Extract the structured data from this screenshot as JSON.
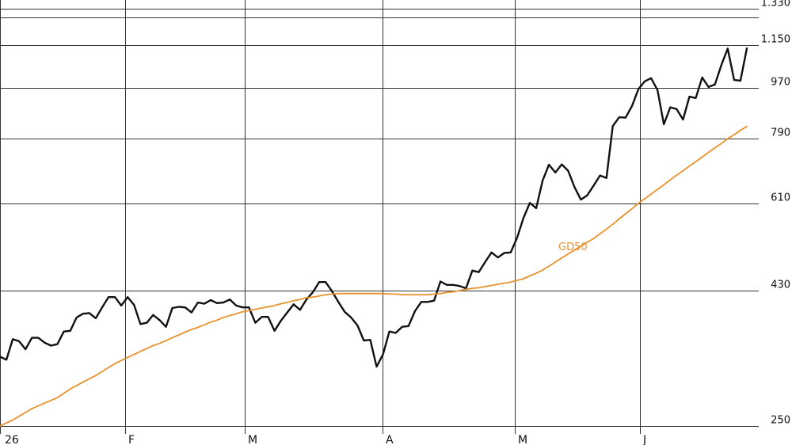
{
  "chart_data": {
    "type": "line",
    "y_scale": "log",
    "ylim": [
      250,
      1330
    ],
    "y_ticks": [
      {
        "value": 250,
        "label": "250"
      },
      {
        "value": 430,
        "label": "430"
      },
      {
        "value": 610,
        "label": "610"
      },
      {
        "value": 790,
        "label": "790"
      },
      {
        "value": 970,
        "label": "970"
      },
      {
        "value": 1150,
        "label": "1.150"
      },
      {
        "value": 1330,
        "label": "1.330"
      }
    ],
    "x_ticks": [
      "26",
      "F",
      "M",
      "A",
      "M",
      "J"
    ],
    "grid": true,
    "colors": {
      "price": "#111111",
      "ma": "#E8922E",
      "grid": "#333333"
    },
    "series": [
      {
        "name": "",
        "values": [
          330,
          326,
          354,
          351,
          340,
          356,
          356,
          349,
          345,
          347,
          365,
          366,
          386,
          392,
          393,
          385,
          402,
          419,
          419,
          405,
          419,
          406,
          376,
          378,
          390,
          382,
          372,
          401,
          403,
          402,
          394,
          410,
          408,
          414,
          409,
          410,
          415,
          405,
          402,
          402,
          378,
          387,
          387,
          366,
          381,
          394,
          407,
          398,
          415,
          427,
          445,
          445,
          429,
          411,
          395,
          386,
          374,
          352,
          353,
          317,
          333,
          365,
          363,
          372,
          373,
          396,
          411,
          411,
          413,
          446,
          440,
          440,
          438,
          434,
          466,
          463,
          482,
          501,
          491,
          500,
          501,
          531,
          575,
          611,
          598,
          668,
          712,
          690,
          713,
          695,
          651,
          619,
          630,
          655,
          682,
          675,
          831,
          861,
          860,
          900,
          963,
          994,
          1007,
          960,
          837,
          896,
          890,
          853,
          935,
          930,
          1010,
          972,
          982,
          1061,
          1134,
          1000,
          997,
          1135
        ],
        "source": "daily close, read from line"
      },
      {
        "name": "GD50",
        "values": [
          250,
          253,
          256,
          260,
          264,
          268,
          271,
          274,
          277,
          280,
          285,
          290,
          294,
          298,
          302,
          306,
          311,
          316,
          321,
          325,
          329,
          333,
          337,
          341,
          345,
          348,
          352,
          356,
          360,
          364,
          368,
          371,
          375,
          379,
          382,
          386,
          389,
          392,
          395,
          397,
          399,
          401,
          403,
          405,
          408,
          410,
          413,
          415,
          418,
          419,
          421,
          423,
          424,
          425,
          425,
          425,
          425,
          425,
          425,
          425,
          425,
          424,
          424,
          423,
          423,
          423,
          423,
          423,
          424,
          425,
          427,
          428,
          430,
          432,
          434,
          435,
          437,
          439,
          441,
          443,
          445,
          448,
          451,
          456,
          461,
          467,
          474,
          482,
          490,
          498,
          506,
          514,
          522,
          530,
          540,
          550,
          561,
          573,
          585,
          597,
          610,
          621,
          633,
          645,
          657,
          670,
          683,
          695,
          708,
          721,
          734,
          748,
          762,
          775,
          790,
          803,
          817,
          830
        ],
        "label": "GD50"
      }
    ]
  }
}
